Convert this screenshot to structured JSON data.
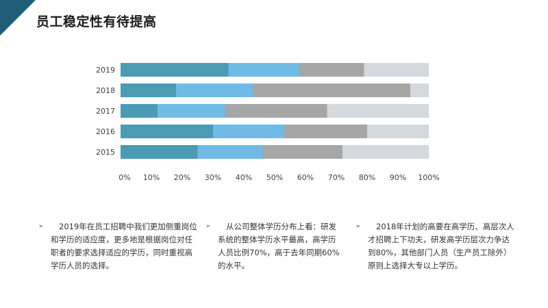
{
  "slide": {
    "title": "员工稳定性有待提高"
  },
  "chart_data": {
    "type": "bar",
    "orientation": "horizontal",
    "stacked": "percent",
    "categories": [
      "2019",
      "2018",
      "2017",
      "2016",
      "2015"
    ],
    "series": [
      {
        "values": [
          35,
          18,
          12,
          30,
          25
        ],
        "color": "#4a9bb3"
      },
      {
        "values": [
          23,
          25,
          22,
          23,
          21
        ],
        "color": "#6fbbe6"
      },
      {
        "values": [
          21,
          51,
          33,
          27,
          26
        ],
        "color": "#a6a6a6"
      },
      {
        "values": [
          21,
          6,
          33,
          20,
          28
        ],
        "color": "#d4d9de"
      }
    ],
    "x_ticks": [
      "0%",
      "10%",
      "20%",
      "30%",
      "40%",
      "50%",
      "60%",
      "70%",
      "80%",
      "90%",
      "100%"
    ],
    "xlim": [
      0,
      100
    ],
    "grid": false,
    "legend": "none",
    "title": "",
    "xlabel": "",
    "ylabel": ""
  },
  "notes": [
    "2019年在员工招聘中我们更加侧重岗位和学历的适应度，更多地是根据岗位对任职者的要求选择适应的学历，同时重视高学历人员的选择。",
    "从公司整体学历分布上看：研发系统的整体学历水平最高，高学历人员比例70%，高于去年同期60%的水平。",
    "2018年计划的高要在高学历、高层次人才招聘上下功夫，研发高学历层次力争达到80%，其他部门人员（生产员工除外）原则上选择大专以上学历。"
  ],
  "bullet_symbol": "➢",
  "colors": {
    "accent": "#1f5f7a"
  }
}
